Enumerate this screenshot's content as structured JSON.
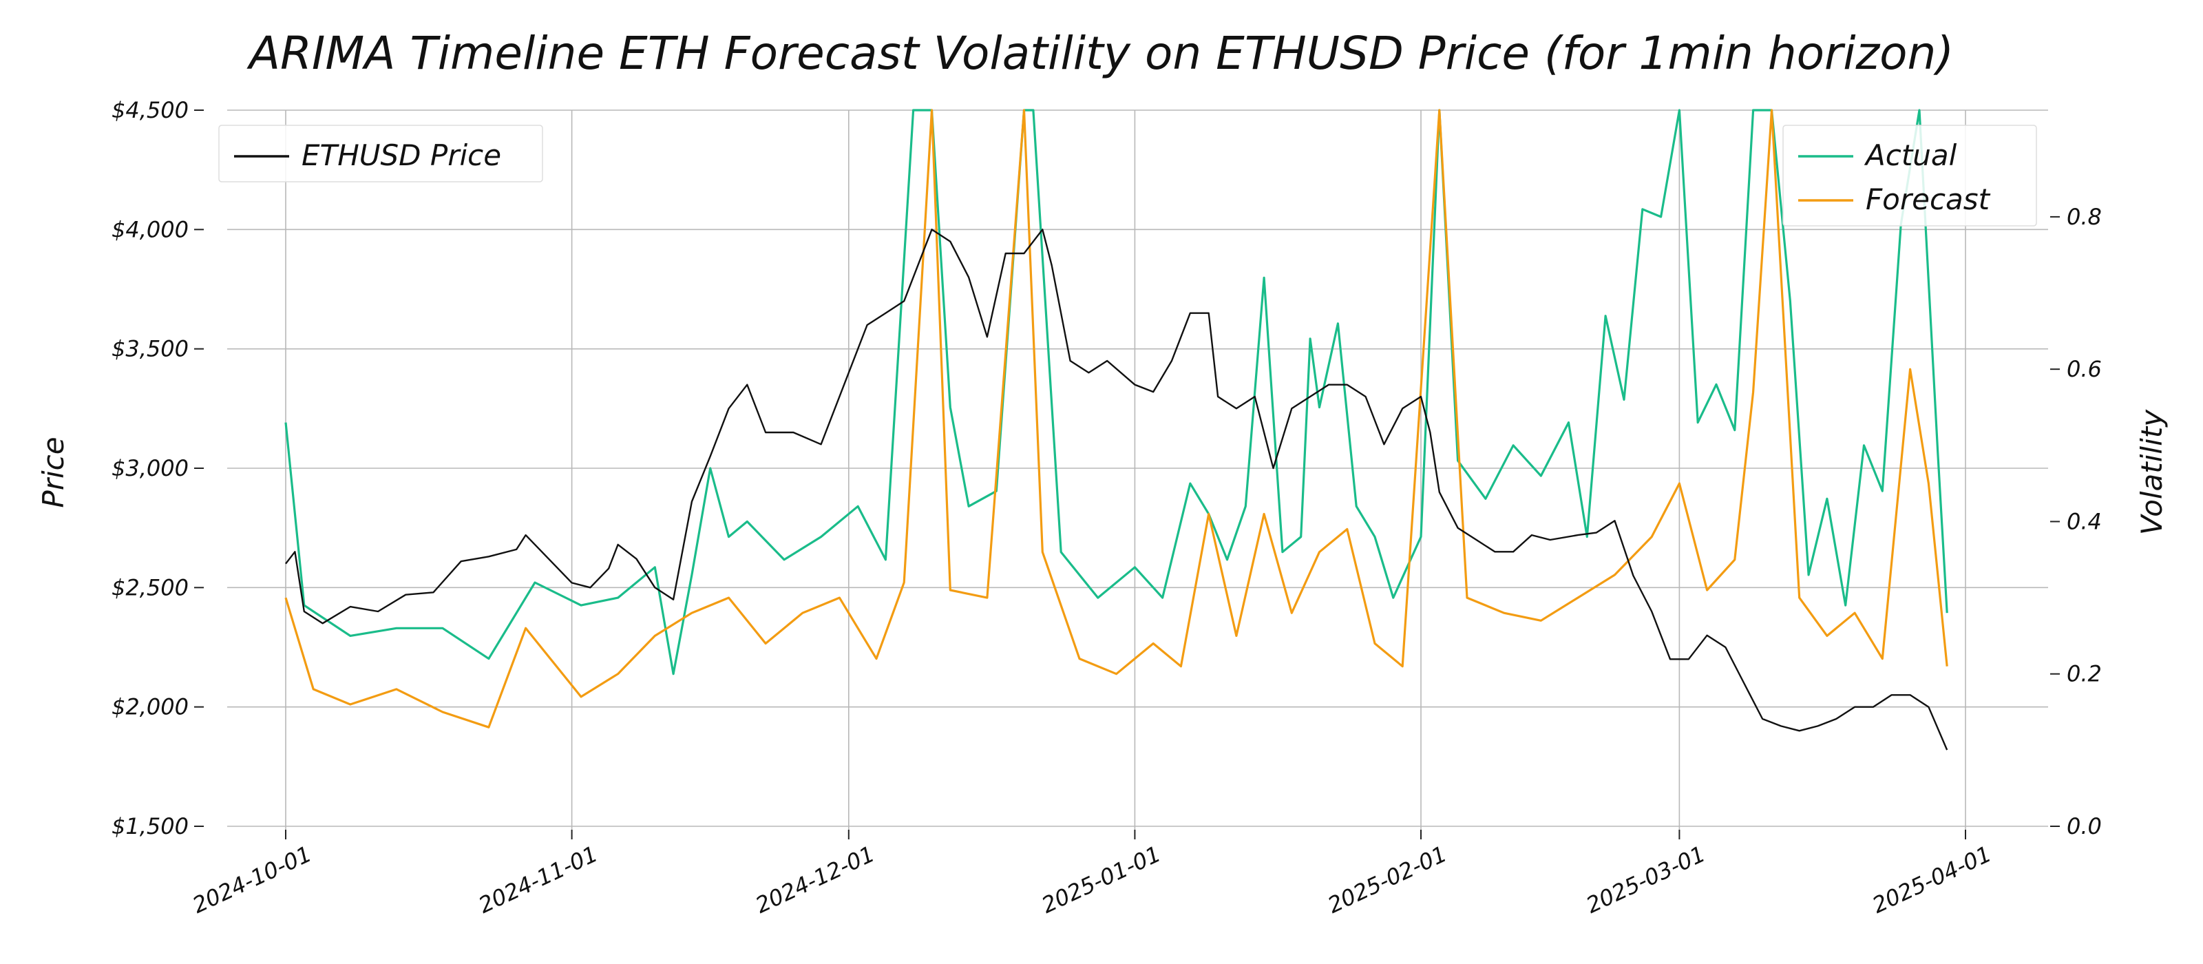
{
  "chart_data": {
    "type": "line",
    "title": "ARIMA Timeline ETH Forecast Volatility on ETHUSD Price (for 1min horizon)",
    "xlabel": "",
    "ylabel": "Price",
    "y2label": "Volatility",
    "xlim": [
      "2024-10-01",
      "2025-04-01"
    ],
    "ylim": [
      1500,
      4500
    ],
    "y2lim": [
      0,
      0.94
    ],
    "x_ticks": [
      "2024-10-01",
      "2024-11-01",
      "2024-12-01",
      "2025-01-01",
      "2025-02-01",
      "2025-03-01",
      "2025-04-01"
    ],
    "y_ticks": [
      "$1,500",
      "$2,000",
      "$2,500",
      "$3,000",
      "$3,500",
      "$4,000",
      "$4,500"
    ],
    "y2_ticks": [
      "0.0",
      "0.2",
      "0.4",
      "0.6",
      "0.8"
    ],
    "grid": true,
    "legend_left": "upper-left",
    "legend_right": "upper-right",
    "colors": {
      "price": "#111111",
      "actual": "#1abc8a",
      "forecast": "#f39c12"
    },
    "series": [
      {
        "name": "ETHUSD Price",
        "axis": "left",
        "points": [
          [
            "2024-10-01",
            2600
          ],
          [
            "2024-10-02",
            2650
          ],
          [
            "2024-10-03",
            2400
          ],
          [
            "2024-10-05",
            2350
          ],
          [
            "2024-10-08",
            2420
          ],
          [
            "2024-10-11",
            2400
          ],
          [
            "2024-10-14",
            2470
          ],
          [
            "2024-10-17",
            2480
          ],
          [
            "2024-10-20",
            2610
          ],
          [
            "2024-10-23",
            2630
          ],
          [
            "2024-10-26",
            2660
          ],
          [
            "2024-10-27",
            2720
          ],
          [
            "2024-10-30",
            2600
          ],
          [
            "2024-11-01",
            2520
          ],
          [
            "2024-11-03",
            2500
          ],
          [
            "2024-11-05",
            2580
          ],
          [
            "2024-11-06",
            2680
          ],
          [
            "2024-11-08",
            2620
          ],
          [
            "2024-11-10",
            2500
          ],
          [
            "2024-11-12",
            2450
          ],
          [
            "2024-11-14",
            2860
          ],
          [
            "2024-11-16",
            3050
          ],
          [
            "2024-11-18",
            3250
          ],
          [
            "2024-11-20",
            3350
          ],
          [
            "2024-11-22",
            3150
          ],
          [
            "2024-11-25",
            3150
          ],
          [
            "2024-11-28",
            3100
          ],
          [
            "2024-12-01",
            3400
          ],
          [
            "2024-12-03",
            3600
          ],
          [
            "2024-12-05",
            3650
          ],
          [
            "2024-12-07",
            3700
          ],
          [
            "2024-12-08",
            3800
          ],
          [
            "2024-12-10",
            4000
          ],
          [
            "2024-12-12",
            3950
          ],
          [
            "2024-12-14",
            3800
          ],
          [
            "2024-12-16",
            3550
          ],
          [
            "2024-12-18",
            3900
          ],
          [
            "2024-12-20",
            3900
          ],
          [
            "2024-12-22",
            4000
          ],
          [
            "2024-12-23",
            3850
          ],
          [
            "2024-12-25",
            3450
          ],
          [
            "2024-12-27",
            3400
          ],
          [
            "2024-12-29",
            3450
          ],
          [
            "2025-01-01",
            3350
          ],
          [
            "2025-01-03",
            3320
          ],
          [
            "2025-01-05",
            3450
          ],
          [
            "2025-01-07",
            3650
          ],
          [
            "2025-01-09",
            3650
          ],
          [
            "2025-01-10",
            3300
          ],
          [
            "2025-01-12",
            3250
          ],
          [
            "2025-01-14",
            3300
          ],
          [
            "2025-01-16",
            3000
          ],
          [
            "2025-01-18",
            3250
          ],
          [
            "2025-01-20",
            3300
          ],
          [
            "2025-01-22",
            3350
          ],
          [
            "2025-01-24",
            3350
          ],
          [
            "2025-01-26",
            3300
          ],
          [
            "2025-01-28",
            3100
          ],
          [
            "2025-01-30",
            3250
          ],
          [
            "2025-02-01",
            3300
          ],
          [
            "2025-02-02",
            3150
          ],
          [
            "2025-02-03",
            2900
          ],
          [
            "2025-02-05",
            2750
          ],
          [
            "2025-02-07",
            2700
          ],
          [
            "2025-02-09",
            2650
          ],
          [
            "2025-02-11",
            2650
          ],
          [
            "2025-02-13",
            2720
          ],
          [
            "2025-02-15",
            2700
          ],
          [
            "2025-02-18",
            2720
          ],
          [
            "2025-02-20",
            2730
          ],
          [
            "2025-02-22",
            2780
          ],
          [
            "2025-02-24",
            2550
          ],
          [
            "2025-02-26",
            2400
          ],
          [
            "2025-02-28",
            2200
          ],
          [
            "2025-03-02",
            2200
          ],
          [
            "2025-03-04",
            2300
          ],
          [
            "2025-03-06",
            2250
          ],
          [
            "2025-03-08",
            2100
          ],
          [
            "2025-03-10",
            1950
          ],
          [
            "2025-03-12",
            1920
          ],
          [
            "2025-03-14",
            1900
          ],
          [
            "2025-03-16",
            1920
          ],
          [
            "2025-03-18",
            1950
          ],
          [
            "2025-03-20",
            2000
          ],
          [
            "2025-03-22",
            2000
          ],
          [
            "2025-03-24",
            2050
          ],
          [
            "2025-03-26",
            2050
          ],
          [
            "2025-03-28",
            2000
          ],
          [
            "2025-03-30",
            1820
          ]
        ]
      },
      {
        "name": "Actual",
        "axis": "right",
        "points": [
          [
            "2024-10-01",
            0.53
          ],
          [
            "2024-10-03",
            0.29
          ],
          [
            "2024-10-08",
            0.25
          ],
          [
            "2024-10-13",
            0.26
          ],
          [
            "2024-10-18",
            0.26
          ],
          [
            "2024-10-23",
            0.22
          ],
          [
            "2024-10-28",
            0.32
          ],
          [
            "2024-11-02",
            0.29
          ],
          [
            "2024-11-06",
            0.3
          ],
          [
            "2024-11-10",
            0.34
          ],
          [
            "2024-11-12",
            0.2
          ],
          [
            "2024-11-14",
            0.33
          ],
          [
            "2024-11-16",
            0.47
          ],
          [
            "2024-11-18",
            0.38
          ],
          [
            "2024-11-20",
            0.4
          ],
          [
            "2024-11-24",
            0.35
          ],
          [
            "2024-11-28",
            0.38
          ],
          [
            "2024-12-02",
            0.42
          ],
          [
            "2024-12-05",
            0.35
          ],
          [
            "2024-12-08",
            0.94
          ],
          [
            "2024-12-10",
            0.94
          ],
          [
            "2024-12-12",
            0.55
          ],
          [
            "2024-12-14",
            0.42
          ],
          [
            "2024-12-17",
            0.44
          ],
          [
            "2024-12-20",
            0.94
          ],
          [
            "2024-12-21",
            0.94
          ],
          [
            "2024-12-24",
            0.36
          ],
          [
            "2024-12-28",
            0.3
          ],
          [
            "2025-01-01",
            0.34
          ],
          [
            "2025-01-04",
            0.3
          ],
          [
            "2025-01-07",
            0.45
          ],
          [
            "2025-01-09",
            0.41
          ],
          [
            "2025-01-11",
            0.35
          ],
          [
            "2025-01-13",
            0.42
          ],
          [
            "2025-01-15",
            0.72
          ],
          [
            "2025-01-17",
            0.36
          ],
          [
            "2025-01-19",
            0.38
          ],
          [
            "2025-01-20",
            0.64
          ],
          [
            "2025-01-21",
            0.55
          ],
          [
            "2025-01-23",
            0.66
          ],
          [
            "2025-01-25",
            0.42
          ],
          [
            "2025-01-27",
            0.38
          ],
          [
            "2025-01-29",
            0.3
          ],
          [
            "2025-02-01",
            0.38
          ],
          [
            "2025-02-03",
            0.94
          ],
          [
            "2025-02-05",
            0.48
          ],
          [
            "2025-02-08",
            0.43
          ],
          [
            "2025-02-11",
            0.5
          ],
          [
            "2025-02-14",
            0.46
          ],
          [
            "2025-02-17",
            0.53
          ],
          [
            "2025-02-19",
            0.38
          ],
          [
            "2025-02-21",
            0.67
          ],
          [
            "2025-02-23",
            0.56
          ],
          [
            "2025-02-25",
            0.81
          ],
          [
            "2025-02-27",
            0.8
          ],
          [
            "2025-03-01",
            0.94
          ],
          [
            "2025-03-03",
            0.53
          ],
          [
            "2025-03-05",
            0.58
          ],
          [
            "2025-03-07",
            0.52
          ],
          [
            "2025-03-09",
            0.94
          ],
          [
            "2025-03-11",
            0.94
          ],
          [
            "2025-03-13",
            0.69
          ],
          [
            "2025-03-15",
            0.33
          ],
          [
            "2025-03-17",
            0.43
          ],
          [
            "2025-03-19",
            0.29
          ],
          [
            "2025-03-21",
            0.5
          ],
          [
            "2025-03-23",
            0.44
          ],
          [
            "2025-03-25",
            0.79
          ],
          [
            "2025-03-27",
            0.94
          ],
          [
            "2025-03-29",
            0.49
          ],
          [
            "2025-03-30",
            0.28
          ]
        ]
      },
      {
        "name": "Forecast",
        "axis": "right",
        "points": [
          [
            "2024-10-01",
            0.3
          ],
          [
            "2024-10-04",
            0.18
          ],
          [
            "2024-10-08",
            0.16
          ],
          [
            "2024-10-13",
            0.18
          ],
          [
            "2024-10-18",
            0.15
          ],
          [
            "2024-10-23",
            0.13
          ],
          [
            "2024-10-27",
            0.26
          ],
          [
            "2024-11-02",
            0.17
          ],
          [
            "2024-11-06",
            0.2
          ],
          [
            "2024-11-10",
            0.25
          ],
          [
            "2024-11-14",
            0.28
          ],
          [
            "2024-11-18",
            0.3
          ],
          [
            "2024-11-22",
            0.24
          ],
          [
            "2024-11-26",
            0.28
          ],
          [
            "2024-11-30",
            0.3
          ],
          [
            "2024-12-04",
            0.22
          ],
          [
            "2024-12-07",
            0.32
          ],
          [
            "2024-12-10",
            0.94
          ],
          [
            "2024-12-12",
            0.31
          ],
          [
            "2024-12-16",
            0.3
          ],
          [
            "2024-12-20",
            0.94
          ],
          [
            "2024-12-22",
            0.36
          ],
          [
            "2024-12-26",
            0.22
          ],
          [
            "2024-12-30",
            0.2
          ],
          [
            "2025-01-03",
            0.24
          ],
          [
            "2025-01-06",
            0.21
          ],
          [
            "2025-01-09",
            0.41
          ],
          [
            "2025-01-12",
            0.25
          ],
          [
            "2025-01-15",
            0.41
          ],
          [
            "2025-01-18",
            0.28
          ],
          [
            "2025-01-21",
            0.36
          ],
          [
            "2025-01-24",
            0.39
          ],
          [
            "2025-01-27",
            0.24
          ],
          [
            "2025-01-30",
            0.21
          ],
          [
            "2025-02-03",
            0.94
          ],
          [
            "2025-02-06",
            0.3
          ],
          [
            "2025-02-10",
            0.28
          ],
          [
            "2025-02-14",
            0.27
          ],
          [
            "2025-02-18",
            0.3
          ],
          [
            "2025-02-22",
            0.33
          ],
          [
            "2025-02-26",
            0.38
          ],
          [
            "2025-03-01",
            0.45
          ],
          [
            "2025-03-04",
            0.31
          ],
          [
            "2025-03-07",
            0.35
          ],
          [
            "2025-03-09",
            0.57
          ],
          [
            "2025-03-11",
            0.94
          ],
          [
            "2025-03-14",
            0.3
          ],
          [
            "2025-03-17",
            0.25
          ],
          [
            "2025-03-20",
            0.28
          ],
          [
            "2025-03-23",
            0.22
          ],
          [
            "2025-03-26",
            0.6
          ],
          [
            "2025-03-28",
            0.45
          ],
          [
            "2025-03-30",
            0.21
          ]
        ]
      }
    ]
  }
}
